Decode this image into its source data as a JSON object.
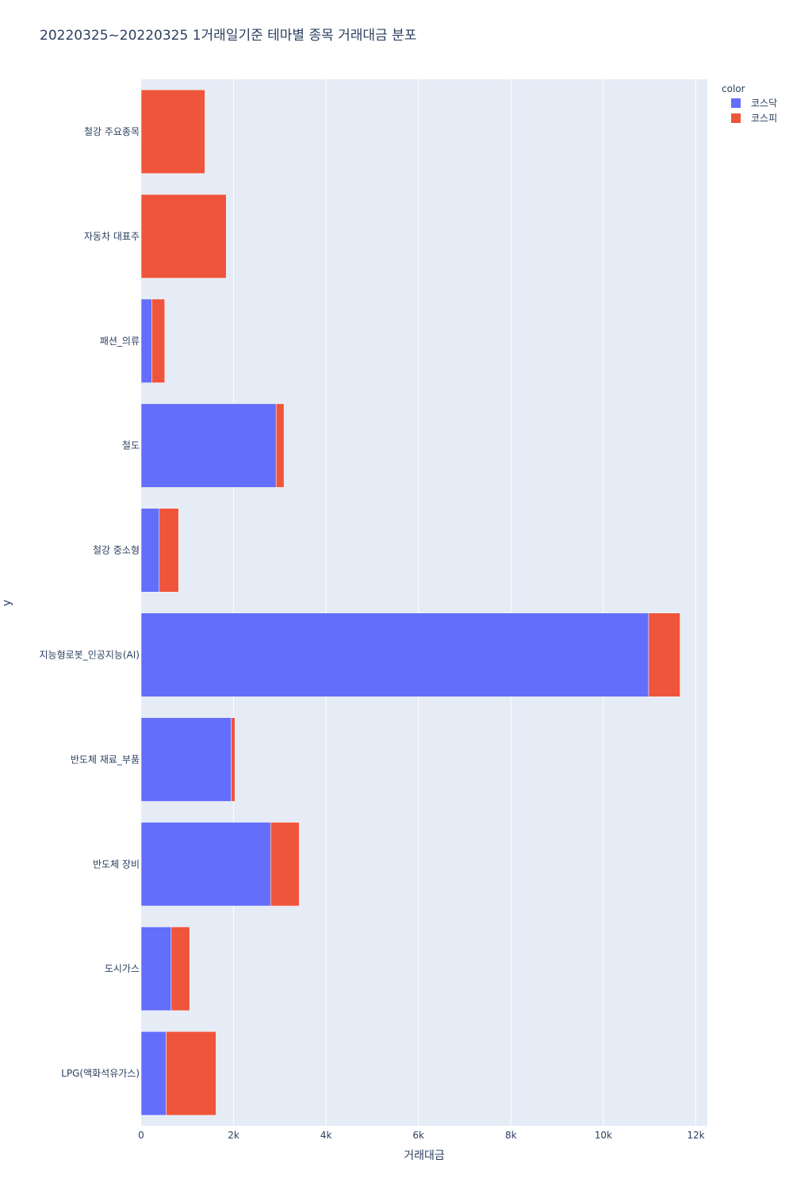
{
  "chart_data": {
    "type": "bar",
    "orientation": "horizontal",
    "barmode": "stack",
    "title": "20220325~20220325 1거래일기준 테마별 종목 거래대금 분포",
    "xlabel": "거래대금",
    "ylabel": "y",
    "xlim": [
      0,
      12250
    ],
    "x_ticks": [
      0,
      2000,
      4000,
      6000,
      8000,
      10000,
      12000
    ],
    "x_tick_labels": [
      "0",
      "2k",
      "4k",
      "6k",
      "8k",
      "10k",
      "12k"
    ],
    "categories": [
      "철강 주요종목",
      "자동차 대표주",
      "패션_의류",
      "철도",
      "철강 중소형",
      "지능형로봇_인공지능(AI)",
      "반도체 재료_부품",
      "반도체 장비",
      "도시가스",
      "LPG(액화석유가스)"
    ],
    "series": [
      {
        "name": "코스닥",
        "color": "#636efa",
        "values": [
          0,
          0,
          230,
          2920,
          390,
          10980,
          1950,
          2800,
          650,
          540
        ]
      },
      {
        "name": "코스피",
        "color": "#ef553b",
        "values": [
          1380,
          1840,
          280,
          170,
          420,
          680,
          80,
          620,
          400,
          1080
        ]
      }
    ],
    "legend": {
      "title": "color",
      "position": "top-right"
    },
    "grid": true
  }
}
